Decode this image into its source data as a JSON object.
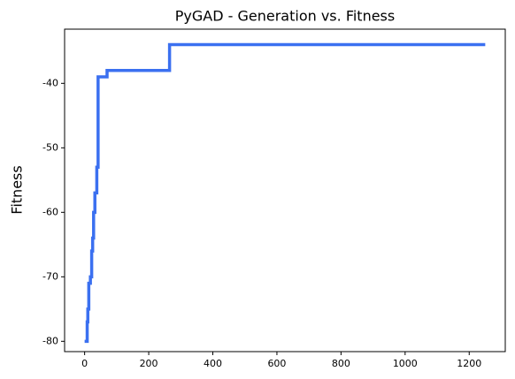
{
  "chart_data": {
    "type": "line",
    "title": "PyGAD - Generation vs. Fitness",
    "ylabel": "Fitness",
    "x": [
      0,
      8,
      8,
      10,
      10,
      13,
      13,
      18,
      18,
      22,
      22,
      25,
      25,
      28,
      28,
      32,
      32,
      38,
      38,
      42,
      42,
      70,
      70,
      265,
      265,
      1250
    ],
    "series": [
      {
        "name": "Fitness",
        "color": "#3b70f0",
        "values": [
          -80,
          -80,
          -77,
          -77,
          -75,
          -75,
          -71,
          -71,
          -70,
          -70,
          -66,
          -66,
          -64,
          -64,
          -60,
          -60,
          -57,
          -57,
          -53,
          -53,
          -39,
          -39,
          -38,
          -38,
          -34,
          -34
        ]
      }
    ],
    "xlim": [
      -62.5,
      1312.5
    ],
    "xticks": [
      0,
      200,
      400,
      600,
      800,
      1000,
      1200
    ],
    "ylim": [
      -81.6,
      -31.6
    ],
    "yticks": [
      -80,
      -70,
      -60,
      -50,
      -40
    ],
    "grid": false
  }
}
